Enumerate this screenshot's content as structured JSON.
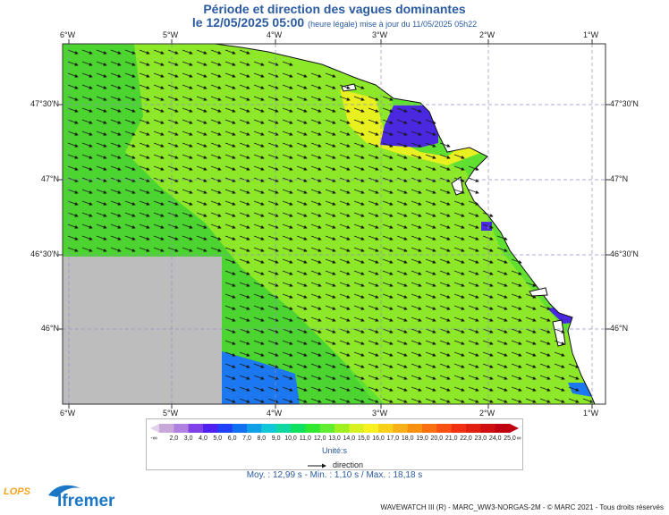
{
  "header": {
    "title": "Période et direction des vagues dominantes",
    "date": "le 12/05/2025 05:00",
    "subtitle": "(heure légale) mise à jour du 11/05/2025 05h22"
  },
  "axes": {
    "lon_labels": [
      "6°W",
      "5°W",
      "4°W",
      "3°W",
      "2°W",
      "1°W"
    ],
    "lat_labels": [
      "47°30'N",
      "47°N",
      "46°30'N",
      "46°N"
    ]
  },
  "legend": {
    "ticks": [
      "2,0",
      "3,0",
      "4,0",
      "5,0",
      "6,0",
      "7,0",
      "8,0",
      "9,0",
      "10,0",
      "11,0",
      "12,0",
      "13,0",
      "14,0",
      "15,0",
      "16,0",
      "17,0",
      "18,0",
      "19,0",
      "20,0",
      "21,0",
      "22,0",
      "23,0",
      "24,0",
      "25,0"
    ],
    "low": "-∞",
    "high": "∞",
    "colors": [
      "#c8a8d8",
      "#b080e0",
      "#8040e8",
      "#5020f0",
      "#2040f8",
      "#1070f0",
      "#10a0e8",
      "#10c8d8",
      "#10d8a0",
      "#10e060",
      "#30e830",
      "#60ec30",
      "#a0f020",
      "#d8f020",
      "#f8f020",
      "#f8d018",
      "#f8b018",
      "#f89010",
      "#f87010",
      "#f85010",
      "#f03010",
      "#e02010",
      "#d01010",
      "#c00010"
    ],
    "unit": "Unité:s",
    "direction_label": "direction"
  },
  "stats": {
    "text": "Moy. : 12,99 s   -   Min. : 1,10 s / Max. : 18,18 s"
  },
  "footer": {
    "credit": "WAVEWATCH III (R) - MARC_WW3-NORGAS-2M - © MARC 2021 - Tous droits réservés"
  },
  "logos": {
    "lops": "LOPS",
    "ifremer": "Ifremer"
  },
  "map_colors": {
    "green_dark": "#4cd430",
    "green_mid": "#60e030",
    "green_light": "#8ce828",
    "yellow_green": "#b8f020",
    "yellow": "#e8f020",
    "blue": "#4a28e0",
    "blue_sea": "#1c78f0",
    "land": "#ffffff",
    "no_data": "#bdbdbd"
  }
}
